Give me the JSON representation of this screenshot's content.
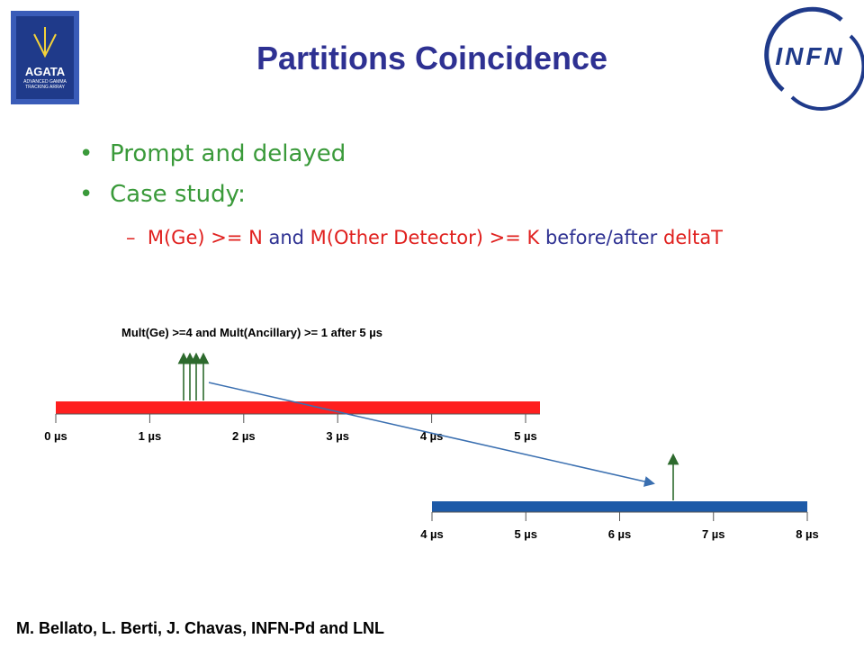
{
  "title": "Partitions Coincidence",
  "logos": {
    "agata": {
      "name": "AGATA",
      "subtitle": "ADVANCED GAMMA TRACKING ARRAY"
    },
    "infn": "INFN"
  },
  "bullets": [
    "Prompt and delayed",
    "Case study:"
  ],
  "sub_bullet": [
    {
      "text": "M(Ge) >= N",
      "color": "red"
    },
    {
      "text": " and ",
      "color": "blue"
    },
    {
      "text": "M(Other Detector) >= K",
      "color": "red"
    },
    {
      "text": " before/after ",
      "color": "blue"
    },
    {
      "text": "deltaT",
      "color": "red"
    }
  ],
  "diagram": {
    "caption": "Mult(Ge) >=4  and Mult(Ancillary) >= 1  after 5 µs",
    "prompt_ticks": [
      "0 µs",
      "1 µs",
      "2 µs",
      "3 µs",
      "4 µs",
      "5 µs"
    ],
    "delayed_ticks": [
      "4 µs",
      "5 µs",
      "6 µs",
      "7 µs",
      "8 µs"
    ]
  },
  "footer": "M. Bellato, L. Berti, J. Chavas,  INFN-Pd and LNL"
}
